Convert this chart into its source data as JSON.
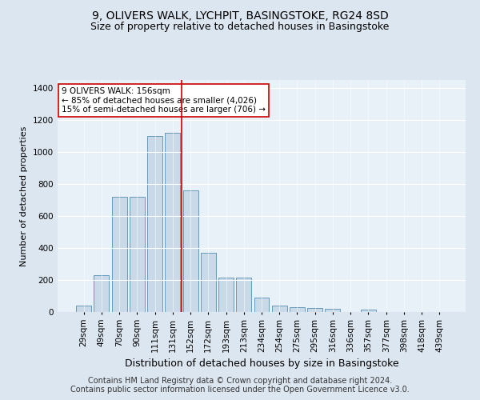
{
  "title": "9, OLIVERS WALK, LYCHPIT, BASINGSTOKE, RG24 8SD",
  "subtitle": "Size of property relative to detached houses in Basingstoke",
  "xlabel": "Distribution of detached houses by size in Basingstoke",
  "ylabel": "Number of detached properties",
  "categories": [
    "29sqm",
    "49sqm",
    "70sqm",
    "90sqm",
    "111sqm",
    "131sqm",
    "152sqm",
    "172sqm",
    "193sqm",
    "213sqm",
    "234sqm",
    "254sqm",
    "275sqm",
    "295sqm",
    "316sqm",
    "336sqm",
    "357sqm",
    "377sqm",
    "398sqm",
    "418sqm",
    "439sqm"
  ],
  "values": [
    40,
    230,
    720,
    720,
    1100,
    1120,
    760,
    370,
    215,
    215,
    90,
    40,
    30,
    25,
    20,
    0,
    15,
    0,
    0,
    0,
    0
  ],
  "bar_color": "#c9d9e8",
  "bar_edge_color": "#6699bb",
  "vline_x": 5.5,
  "vline_color": "#cc0000",
  "annotation_text": "9 OLIVERS WALK: 156sqm\n← 85% of detached houses are smaller (4,026)\n15% of semi-detached houses are larger (706) →",
  "annotation_box_color": "#ffffff",
  "annotation_box_edge_color": "#cc0000",
  "ylim": [
    0,
    1450
  ],
  "yticks": [
    0,
    200,
    400,
    600,
    800,
    1000,
    1200,
    1400
  ],
  "bg_color": "#dce6f0",
  "plot_bg_color": "#e8f0f8",
  "footer_line1": "Contains HM Land Registry data © Crown copyright and database right 2024.",
  "footer_line2": "Contains public sector information licensed under the Open Government Licence v3.0.",
  "title_fontsize": 10,
  "subtitle_fontsize": 9,
  "xlabel_fontsize": 9,
  "ylabel_fontsize": 8,
  "tick_fontsize": 7.5,
  "footer_fontsize": 7,
  "annotation_fontsize": 7.5
}
